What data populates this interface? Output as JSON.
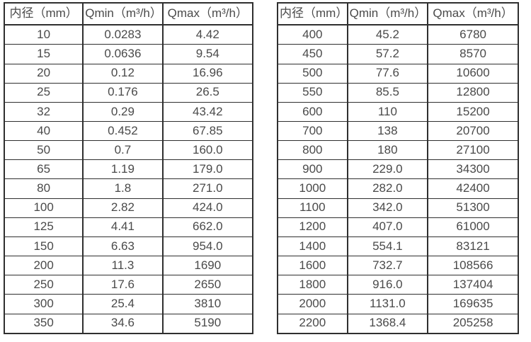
{
  "page": {
    "background": "#ffffff",
    "border_color": "#2f2f2f",
    "text_color": "#4a4a4a"
  },
  "tables": [
    {
      "name": "small-diameter-flow-table",
      "headers": {
        "diameter": "内径（mm）",
        "qmin": "Qmin（m³/h）",
        "qmax": "Qmax（m³/h）"
      },
      "rows": [
        [
          "10",
          "0.0283",
          "4.42"
        ],
        [
          "15",
          "0.0636",
          "9.54"
        ],
        [
          "20",
          "0.12",
          "16.96"
        ],
        [
          "25",
          "0.176",
          "26.5"
        ],
        [
          "32",
          "0.29",
          "43.42"
        ],
        [
          "40",
          "0.452",
          "67.85"
        ],
        [
          "50",
          "0.7",
          "160.0"
        ],
        [
          "65",
          "1.19",
          "179.0"
        ],
        [
          "80",
          "1.8",
          "271.0"
        ],
        [
          "100",
          "2.82",
          "424.0"
        ],
        [
          "125",
          "4.41",
          "662.0"
        ],
        [
          "150",
          "6.63",
          "954.0"
        ],
        [
          "200",
          "11.3",
          "1690"
        ],
        [
          "250",
          "17.6",
          "2650"
        ],
        [
          "300",
          "25.4",
          "3810"
        ],
        [
          "350",
          "34.6",
          "5190"
        ]
      ]
    },
    {
      "name": "large-diameter-flow-table",
      "headers": {
        "diameter": "内径（mm）",
        "qmin": "Qmin（m³/h）",
        "qmax": "Qmax（m³/h）"
      },
      "rows": [
        [
          "400",
          "45.2",
          "6780"
        ],
        [
          "450",
          "57.2",
          "8570"
        ],
        [
          "500",
          "77.6",
          "10600"
        ],
        [
          "550",
          "85.5",
          "12800"
        ],
        [
          "600",
          "110",
          "15200"
        ],
        [
          "700",
          "138",
          "20700"
        ],
        [
          "800",
          "180",
          "27100"
        ],
        [
          "900",
          "229.0",
          "34300"
        ],
        [
          "1000",
          "282.0",
          "42400"
        ],
        [
          "1100",
          "342.0",
          "51300"
        ],
        [
          "1200",
          "407.0",
          "61000"
        ],
        [
          "1400",
          "554.1",
          "83121"
        ],
        [
          "1600",
          "732.7",
          "108566"
        ],
        [
          "1800",
          "916.0",
          "137404"
        ],
        [
          "2000",
          "1131.0",
          "169635"
        ],
        [
          "2200",
          "1368.4",
          "205258"
        ]
      ]
    }
  ]
}
